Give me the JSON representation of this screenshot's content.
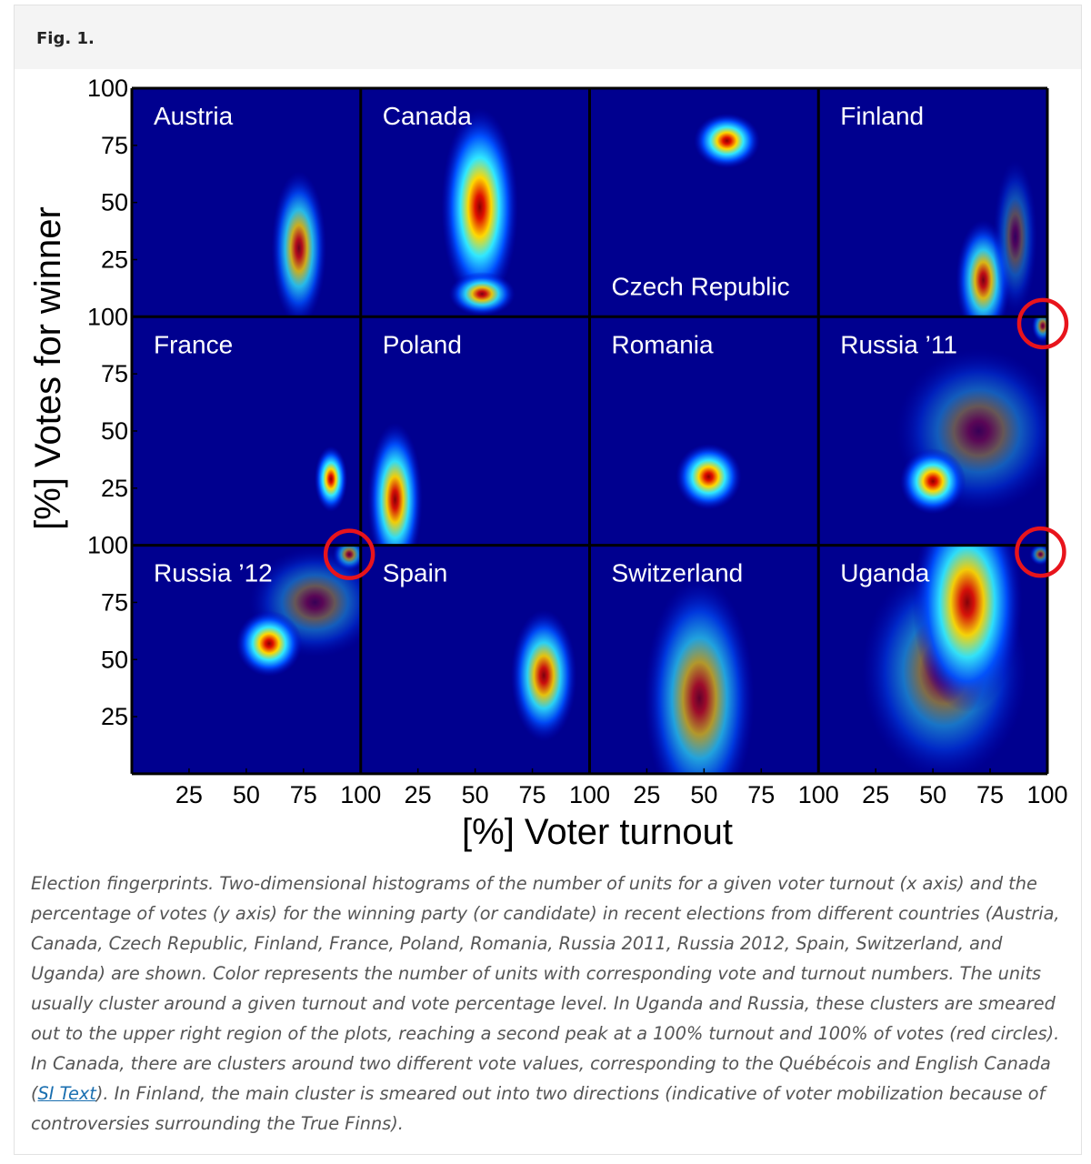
{
  "figure": {
    "label": "Fig. 1.",
    "caption": {
      "before": "Election fingerprints. Two-dimensional histograms of the number of units for a given voter turnout (x axis) and the percentage of votes (y axis) for the winning party (or candidate) in recent elections from different countries (Austria, Canada, Czech Republic, Finland, France, Poland, Romania, Russia 2011, Russia 2012, Spain, Switzerland, and Uganda) are shown. Color represents the number of units with corresponding vote and turnout numbers. The units usually cluster around a given turnout and vote percentage level. In Uganda and Russia, these clusters are smeared out to the upper right region of the plots, reaching a second peak at a 100% turnout and 100% of votes (red circles). In Canada, there are clusters around two different vote values, corresponding to the Québécois and English Canada (",
      "link": "SI Text",
      "after": "). In Finland, the main cluster is smeared out into two directions (indicative of voter mobilization because of controversies surrounding the True Finns)."
    }
  },
  "chart_data": {
    "type": "heatmap",
    "xlabel": "[%] Voter turnout",
    "ylabel": "[%] Votes for winner",
    "xlim": [
      0,
      100
    ],
    "ylim": [
      0,
      100
    ],
    "xticks": [
      25,
      50,
      75,
      100
    ],
    "yticks": [
      25,
      50,
      75,
      100
    ],
    "background": "#00008f",
    "highlight_color": "#e8141c",
    "panels": [
      {
        "title": "Austria",
        "clusters": [
          {
            "x": 73,
            "y": 30,
            "sx": 5,
            "sy": 14,
            "density": 0.8
          }
        ]
      },
      {
        "title": "Canada",
        "clusters": [
          {
            "x": 52,
            "y": 48,
            "sx": 7,
            "sy": 18,
            "density": 1
          },
          {
            "x": 53,
            "y": 10,
            "sx": 6,
            "sy": 4,
            "density": 0.9
          }
        ]
      },
      {
        "title": "Czech Republic",
        "title_corner": "bottom-left",
        "clusters": [
          {
            "x": 60,
            "y": 77,
            "sx": 6,
            "sy": 5,
            "density": 1
          }
        ]
      },
      {
        "title": "Finland",
        "clusters": [
          {
            "x": 72,
            "y": 16,
            "sx": 5,
            "sy": 11,
            "density": 0.85
          },
          {
            "x": 86,
            "y": 35,
            "sx": 4,
            "sy": 14,
            "density": 0.35
          }
        ]
      },
      {
        "title": "France",
        "clusters": [
          {
            "x": 87,
            "y": 29,
            "sx": 3,
            "sy": 6,
            "density": 1
          }
        ]
      },
      {
        "title": "Poland",
        "clusters": [
          {
            "x": 15,
            "y": 20,
            "sx": 5,
            "sy": 14,
            "density": 0.95
          }
        ]
      },
      {
        "title": "Romania",
        "clusters": [
          {
            "x": 52,
            "y": 30,
            "sx": 6,
            "sy": 6,
            "density": 1
          }
        ]
      },
      {
        "title": "Russia ’11",
        "clusters": [
          {
            "x": 70,
            "y": 50,
            "sx": 15,
            "sy": 15,
            "density": 0.4
          },
          {
            "x": 50,
            "y": 28,
            "sx": 6,
            "sy": 6,
            "density": 1
          },
          {
            "x": 98,
            "y": 96,
            "sx": 2,
            "sy": 3,
            "density": 0.6
          }
        ],
        "highlights": [
          {
            "x": 98,
            "y": 97
          }
        ]
      },
      {
        "title": "Russia ’12",
        "clusters": [
          {
            "x": 80,
            "y": 75,
            "sx": 12,
            "sy": 10,
            "density": 0.4
          },
          {
            "x": 60,
            "y": 57,
            "sx": 6,
            "sy": 6,
            "density": 1
          },
          {
            "x": 95,
            "y": 96,
            "sx": 3,
            "sy": 3,
            "density": 0.6
          }
        ],
        "highlights": [
          {
            "x": 95,
            "y": 96
          }
        ]
      },
      {
        "title": "Spain",
        "clusters": [
          {
            "x": 80,
            "y": 43,
            "sx": 6,
            "sy": 12,
            "density": 0.9
          }
        ]
      },
      {
        "title": "Switzerland",
        "clusters": [
          {
            "x": 48,
            "y": 33,
            "sx": 10,
            "sy": 22,
            "density": 0.7
          }
        ]
      },
      {
        "title": "Uganda",
        "clusters": [
          {
            "x": 55,
            "y": 45,
            "sx": 15,
            "sy": 20,
            "density": 0.5
          },
          {
            "x": 65,
            "y": 75,
            "sx": 10,
            "sy": 20,
            "density": 0.95
          },
          {
            "x": 97,
            "y": 96,
            "sx": 2,
            "sy": 2,
            "density": 0.5
          }
        ],
        "highlights": [
          {
            "x": 97,
            "y": 97
          }
        ]
      }
    ]
  }
}
